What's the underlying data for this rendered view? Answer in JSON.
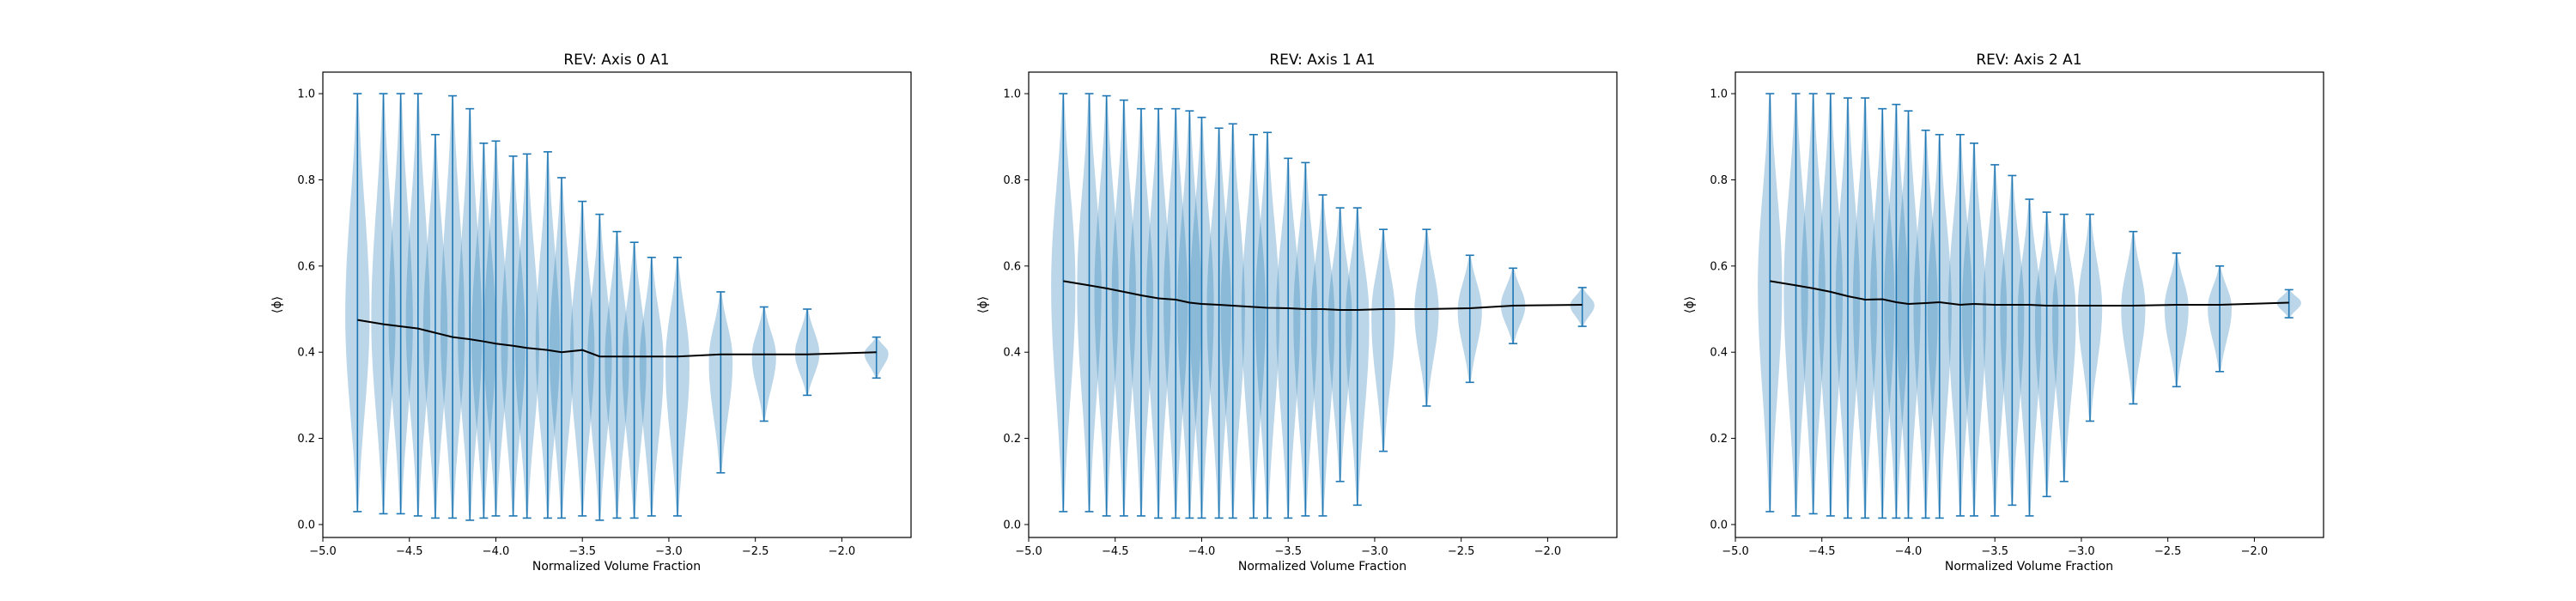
{
  "figure": {
    "background": "#ffffff",
    "violin_fill": "#1f77b4",
    "violin_fill_opacity": 0.3,
    "violin_line": "#1f77b4",
    "mean_line": "#000000"
  },
  "chart_data": [
    {
      "type": "violin",
      "title": "REV: Axis 0 A1",
      "xlabel": "Normalized Volume Fraction",
      "ylabel": "⟨ϕ⟩",
      "xlim": [
        -5.0,
        -1.6
      ],
      "ylim": [
        -0.03,
        1.05
      ],
      "xticks": [
        -5.0,
        -4.5,
        -4.0,
        -3.5,
        -3.0,
        -2.5,
        -2.0
      ],
      "xtick_labels": [
        "−5.0",
        "−4.5",
        "−4.0",
        "−3.5",
        "−3.0",
        "−2.5",
        "−2.0"
      ],
      "yticks": [
        0.0,
        0.2,
        0.4,
        0.6,
        0.8,
        1.0
      ],
      "ytick_labels": [
        "0.0",
        "0.2",
        "0.4",
        "0.6",
        "0.8",
        "1.0"
      ],
      "positions": [
        -4.8,
        -4.65,
        -4.55,
        -4.45,
        -4.35,
        -4.25,
        -4.15,
        -4.07,
        -4.0,
        -3.9,
        -3.82,
        -3.7,
        -3.62,
        -3.5,
        -3.4,
        -3.3,
        -3.2,
        -3.1,
        -2.95,
        -2.7,
        -2.45,
        -2.2,
        -1.8
      ],
      "mins": [
        0.03,
        0.025,
        0.025,
        0.02,
        0.015,
        0.015,
        0.01,
        0.015,
        0.02,
        0.02,
        0.015,
        0.015,
        0.015,
        0.02,
        0.01,
        0.015,
        0.015,
        0.02,
        0.02,
        0.12,
        0.24,
        0.3,
        0.34
      ],
      "maxs": [
        1.0,
        1.0,
        1.0,
        1.0,
        0.905,
        0.995,
        0.965,
        0.885,
        0.89,
        0.855,
        0.86,
        0.865,
        0.805,
        0.75,
        0.72,
        0.68,
        0.655,
        0.62,
        0.62,
        0.54,
        0.505,
        0.5,
        0.435
      ],
      "means": [
        0.475,
        0.465,
        0.46,
        0.455,
        0.445,
        0.435,
        0.43,
        0.425,
        0.42,
        0.415,
        0.41,
        0.405,
        0.4,
        0.405,
        0.39,
        0.39,
        0.39,
        0.39,
        0.39,
        0.395,
        0.395,
        0.395,
        0.4
      ]
    },
    {
      "type": "violin",
      "title": "REV: Axis 1 A1",
      "xlabel": "Normalized Volume Fraction",
      "ylabel": "⟨ϕ⟩",
      "xlim": [
        -5.0,
        -1.6
      ],
      "ylim": [
        -0.03,
        1.05
      ],
      "xticks": [
        -5.0,
        -4.5,
        -4.0,
        -3.5,
        -3.0,
        -2.5,
        -2.0
      ],
      "xtick_labels": [
        "−5.0",
        "−4.5",
        "−4.0",
        "−3.5",
        "−3.0",
        "−2.5",
        "−2.0"
      ],
      "yticks": [
        0.0,
        0.2,
        0.4,
        0.6,
        0.8,
        1.0
      ],
      "ytick_labels": [
        "0.0",
        "0.2",
        "0.4",
        "0.6",
        "0.8",
        "1.0"
      ],
      "positions": [
        -4.8,
        -4.65,
        -4.55,
        -4.45,
        -4.35,
        -4.25,
        -4.15,
        -4.07,
        -4.0,
        -3.9,
        -3.82,
        -3.7,
        -3.62,
        -3.5,
        -3.4,
        -3.3,
        -3.2,
        -3.1,
        -2.95,
        -2.7,
        -2.45,
        -2.2,
        -1.8
      ],
      "mins": [
        0.03,
        0.03,
        0.02,
        0.02,
        0.02,
        0.015,
        0.015,
        0.015,
        0.015,
        0.015,
        0.015,
        0.015,
        0.015,
        0.015,
        0.02,
        0.02,
        0.1,
        0.045,
        0.17,
        0.275,
        0.33,
        0.42,
        0.46
      ],
      "maxs": [
        1.0,
        1.0,
        0.995,
        0.985,
        0.965,
        0.965,
        0.965,
        0.96,
        0.945,
        0.92,
        0.93,
        0.905,
        0.91,
        0.85,
        0.84,
        0.765,
        0.735,
        0.735,
        0.685,
        0.685,
        0.625,
        0.595,
        0.55
      ],
      "means": [
        0.565,
        0.555,
        0.548,
        0.54,
        0.532,
        0.525,
        0.522,
        0.515,
        0.512,
        0.51,
        0.508,
        0.505,
        0.503,
        0.502,
        0.5,
        0.5,
        0.498,
        0.498,
        0.5,
        0.5,
        0.502,
        0.508,
        0.51
      ]
    },
    {
      "type": "violin",
      "title": "REV: Axis 2 A1",
      "xlabel": "Normalized Volume Fraction",
      "ylabel": "⟨ϕ⟩",
      "xlim": [
        -5.0,
        -1.6
      ],
      "ylim": [
        -0.03,
        1.05
      ],
      "xticks": [
        -5.0,
        -4.5,
        -4.0,
        -3.5,
        -3.0,
        -2.5,
        -2.0
      ],
      "xtick_labels": [
        "−5.0",
        "−4.5",
        "−4.0",
        "−3.5",
        "−3.0",
        "−2.5",
        "−2.0"
      ],
      "yticks": [
        0.0,
        0.2,
        0.4,
        0.6,
        0.8,
        1.0
      ],
      "ytick_labels": [
        "0.0",
        "0.2",
        "0.4",
        "0.6",
        "0.8",
        "1.0"
      ],
      "positions": [
        -4.8,
        -4.65,
        -4.55,
        -4.45,
        -4.35,
        -4.25,
        -4.15,
        -4.07,
        -4.0,
        -3.9,
        -3.82,
        -3.7,
        -3.62,
        -3.5,
        -3.4,
        -3.3,
        -3.2,
        -3.1,
        -2.95,
        -2.7,
        -2.45,
        -2.2,
        -1.8
      ],
      "mins": [
        0.03,
        0.02,
        0.025,
        0.02,
        0.015,
        0.015,
        0.015,
        0.015,
        0.015,
        0.015,
        0.015,
        0.02,
        0.02,
        0.02,
        0.045,
        0.02,
        0.065,
        0.1,
        0.24,
        0.28,
        0.32,
        0.355,
        0.48
      ],
      "maxs": [
        1.0,
        1.0,
        1.0,
        1.0,
        0.99,
        0.99,
        0.965,
        0.975,
        0.96,
        0.915,
        0.905,
        0.905,
        0.885,
        0.835,
        0.81,
        0.755,
        0.725,
        0.72,
        0.72,
        0.68,
        0.63,
        0.6,
        0.545
      ],
      "means": [
        0.565,
        0.555,
        0.548,
        0.54,
        0.53,
        0.522,
        0.523,
        0.516,
        0.512,
        0.514,
        0.516,
        0.51,
        0.512,
        0.51,
        0.51,
        0.51,
        0.508,
        0.508,
        0.508,
        0.508,
        0.51,
        0.51,
        0.515
      ]
    }
  ]
}
